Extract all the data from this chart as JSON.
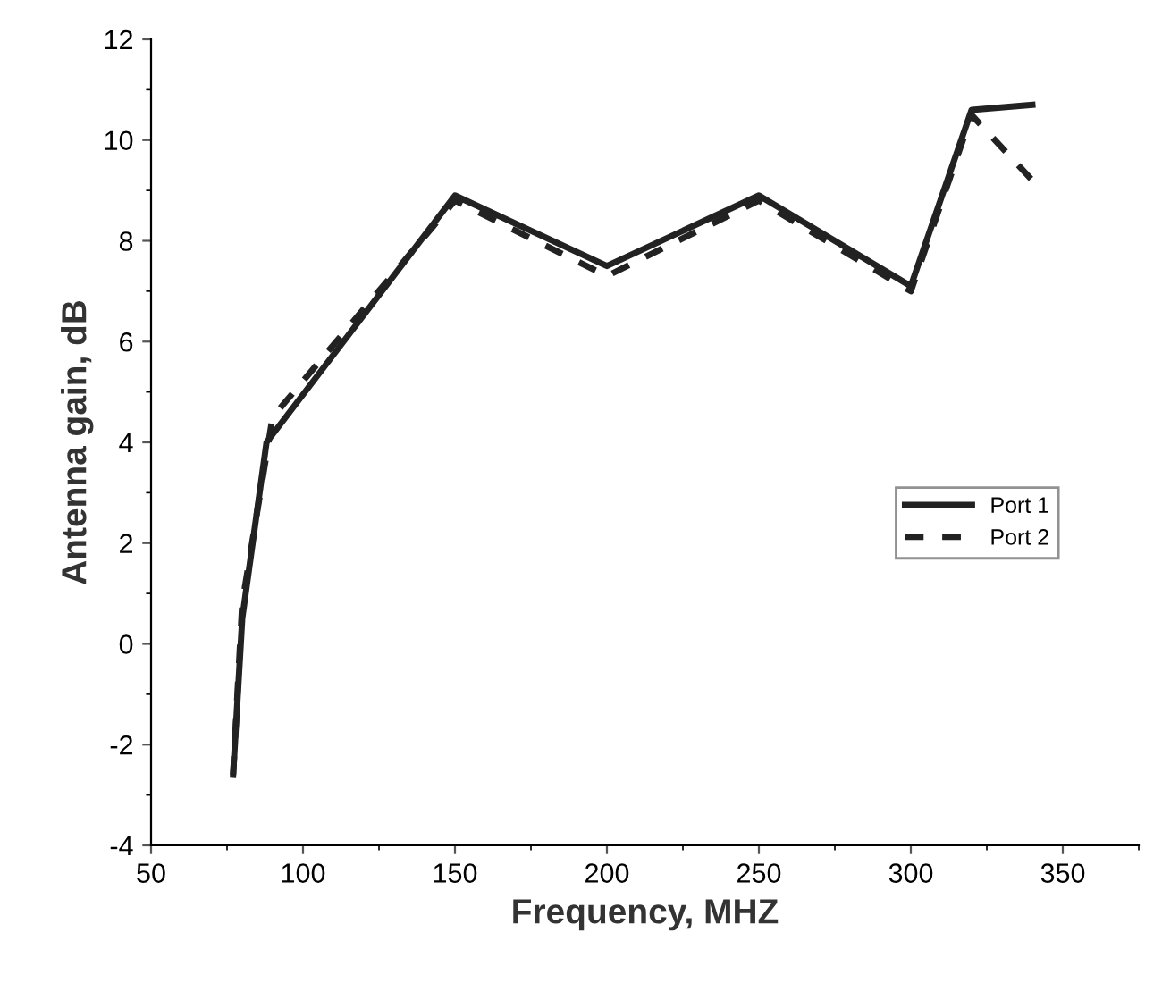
{
  "chart_data": {
    "type": "line",
    "xlabel": "Frequency, MHZ",
    "ylabel": "Antenna gain, dB",
    "xlim": [
      50,
      375
    ],
    "xticks": [
      50,
      100,
      150,
      200,
      250,
      300,
      350
    ],
    "ylim": [
      -4,
      12
    ],
    "yticks": [
      -4,
      -2,
      0,
      2,
      4,
      6,
      8,
      10,
      12
    ],
    "grid": false,
    "legend": "right",
    "marker": "none",
    "series": [
      {
        "name": "Port 1",
        "color": "#222222",
        "line_style": "solid",
        "x": [
          77,
          80,
          88,
          150,
          200,
          250,
          300,
          320,
          340
        ],
        "values": [
          -2.6,
          0.5,
          4.0,
          8.9,
          7.5,
          8.9,
          7.1,
          10.6,
          10.7
        ]
      },
      {
        "name": "Port 2",
        "color": "#222222",
        "line_style": "dashed",
        "x": [
          77,
          80,
          90,
          150,
          200,
          250,
          300,
          320,
          340
        ],
        "values": [
          -2.6,
          0.8,
          4.5,
          8.8,
          7.3,
          8.8,
          7.0,
          10.5,
          9.2
        ]
      }
    ]
  }
}
